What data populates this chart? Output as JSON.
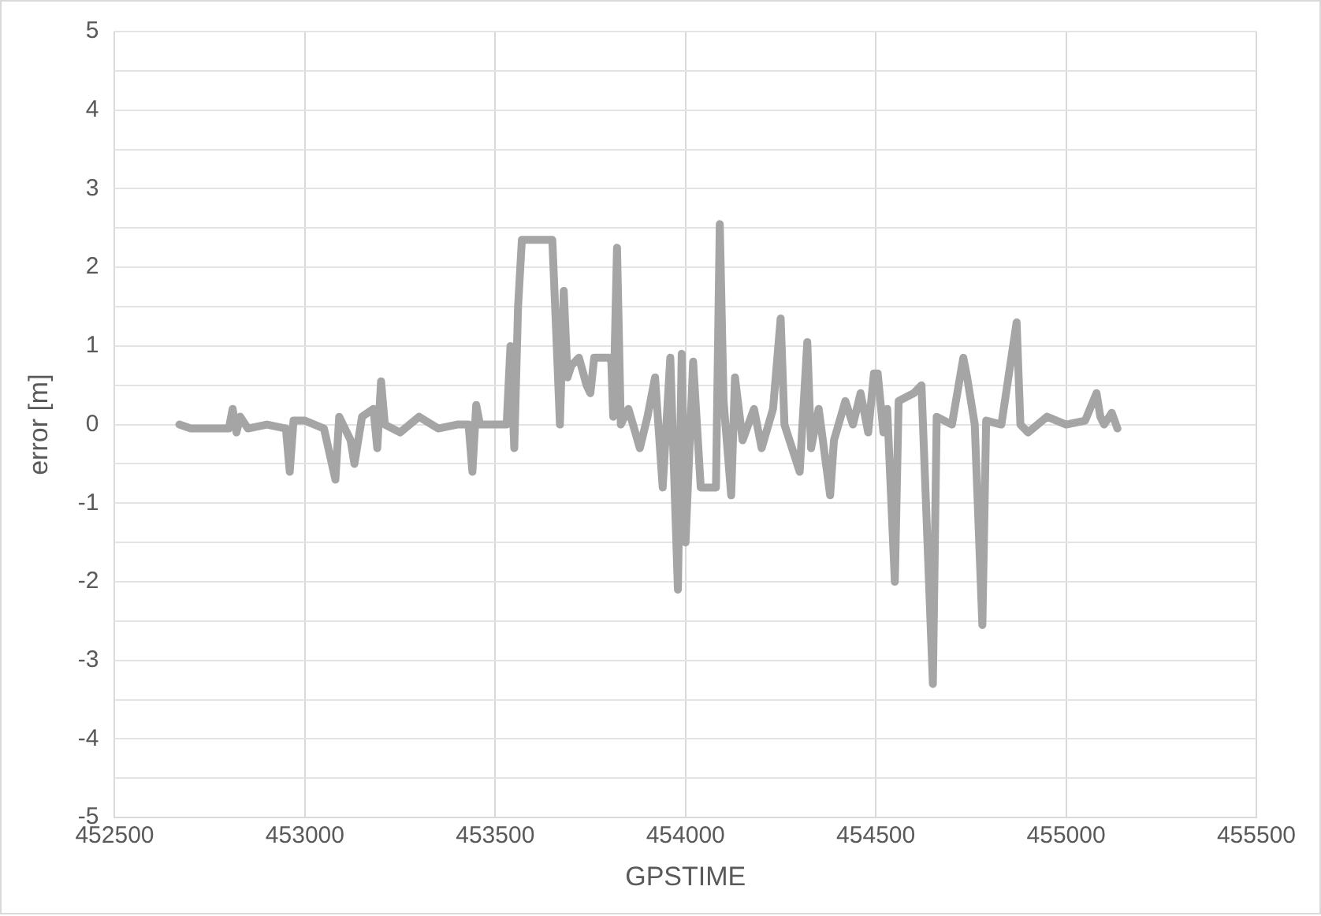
{
  "chart_data": {
    "type": "line",
    "xlabel": "GPSTIME",
    "ylabel": "error [m]",
    "series": [
      {
        "color": "#a5a5a5",
        "x": [
          452670,
          452700,
          452800,
          452810,
          452820,
          452830,
          452850,
          452900,
          452950,
          452960,
          452970,
          453000,
          453050,
          453080,
          453090,
          453120,
          453130,
          453150,
          453180,
          453190,
          453200,
          453210,
          453250,
          453300,
          453350,
          453400,
          453430,
          453440,
          453450,
          453460,
          453500,
          453530,
          453540,
          453550,
          453560,
          453570,
          453600,
          453650,
          453660,
          453670,
          453680,
          453690,
          453700,
          453720,
          453740,
          453750,
          453760,
          453800,
          453805,
          453810,
          453820,
          453830,
          453850,
          453880,
          453900,
          453920,
          453940,
          453960,
          453980,
          453990,
          454000,
          454020,
          454040,
          454080,
          454090,
          454100,
          454120,
          454130,
          454150,
          454180,
          454200,
          454230,
          454250,
          454260,
          454300,
          454320,
          454330,
          454350,
          454380,
          454390,
          454420,
          454440,
          454460,
          454480,
          454495,
          454505,
          454520,
          454530,
          454550,
          454560,
          454600,
          454620,
          454650,
          454660,
          454700,
          454730,
          454740,
          454760,
          454780,
          454790,
          454830,
          454870,
          454880,
          454900,
          454950,
          455000,
          455050,
          455080,
          455090,
          455100,
          455120,
          455135
        ],
        "values": [
          0,
          -0.05,
          -0.05,
          0.2,
          -0.1,
          0.1,
          -0.05,
          0,
          -0.05,
          -0.6,
          0.05,
          0.05,
          -0.05,
          -0.7,
          0.1,
          -0.2,
          -0.5,
          0.1,
          0.2,
          -0.3,
          0.55,
          0,
          -0.1,
          0.1,
          -0.05,
          0,
          0,
          -0.6,
          0.25,
          0,
          0,
          0,
          1,
          -0.3,
          1.5,
          2.35,
          2.35,
          2.35,
          1.2,
          0,
          1.7,
          0.6,
          0.75,
          0.85,
          0.5,
          0.4,
          0.85,
          0.85,
          0.8,
          0.1,
          2.25,
          0,
          0.2,
          -0.3,
          0.1,
          0.6,
          -0.8,
          0.85,
          -2.1,
          0.9,
          -1.5,
          0.8,
          -0.8,
          -0.8,
          2.55,
          0.3,
          -0.9,
          0.6,
          -0.2,
          0.2,
          -0.3,
          0.2,
          1.35,
          0,
          -0.6,
          1.05,
          -0.3,
          0.2,
          -0.9,
          -0.2,
          0.3,
          0,
          0.4,
          -0.1,
          0.65,
          0.65,
          -0.1,
          0.2,
          -2,
          0.3,
          0.4,
          0.5,
          -3.3,
          0.1,
          0,
          0.85,
          0.6,
          0,
          -2.55,
          0.05,
          0,
          1.3,
          0,
          -0.1,
          0.1,
          0,
          0.05,
          0.4,
          0.1,
          0,
          0.15,
          -0.05
        ]
      }
    ],
    "xlim": [
      452500,
      455500
    ],
    "xticks": [
      452500,
      453000,
      453500,
      454000,
      454500,
      455000,
      455500
    ],
    "ylim": [
      -5,
      5
    ],
    "yticks": [
      -5,
      {
        "value": -4.5,
        "label": null
      },
      -4,
      {
        "value": -3.5,
        "label": null
      },
      -3,
      {
        "value": -2.5,
        "label": null
      },
      -2,
      {
        "value": -1.5,
        "label": null
      },
      -1,
      {
        "value": -0.5,
        "label": null
      },
      0,
      {
        "value": 0.5,
        "label": null
      },
      1,
      {
        "value": 1.5,
        "label": null
      },
      2,
      {
        "value": 2.5,
        "label": null
      },
      3,
      {
        "value": 3.5,
        "label": null
      },
      4,
      {
        "value": 4.5,
        "label": null
      },
      5
    ],
    "grid": true,
    "legend": false,
    "marker": "none",
    "line_style": "solid"
  }
}
